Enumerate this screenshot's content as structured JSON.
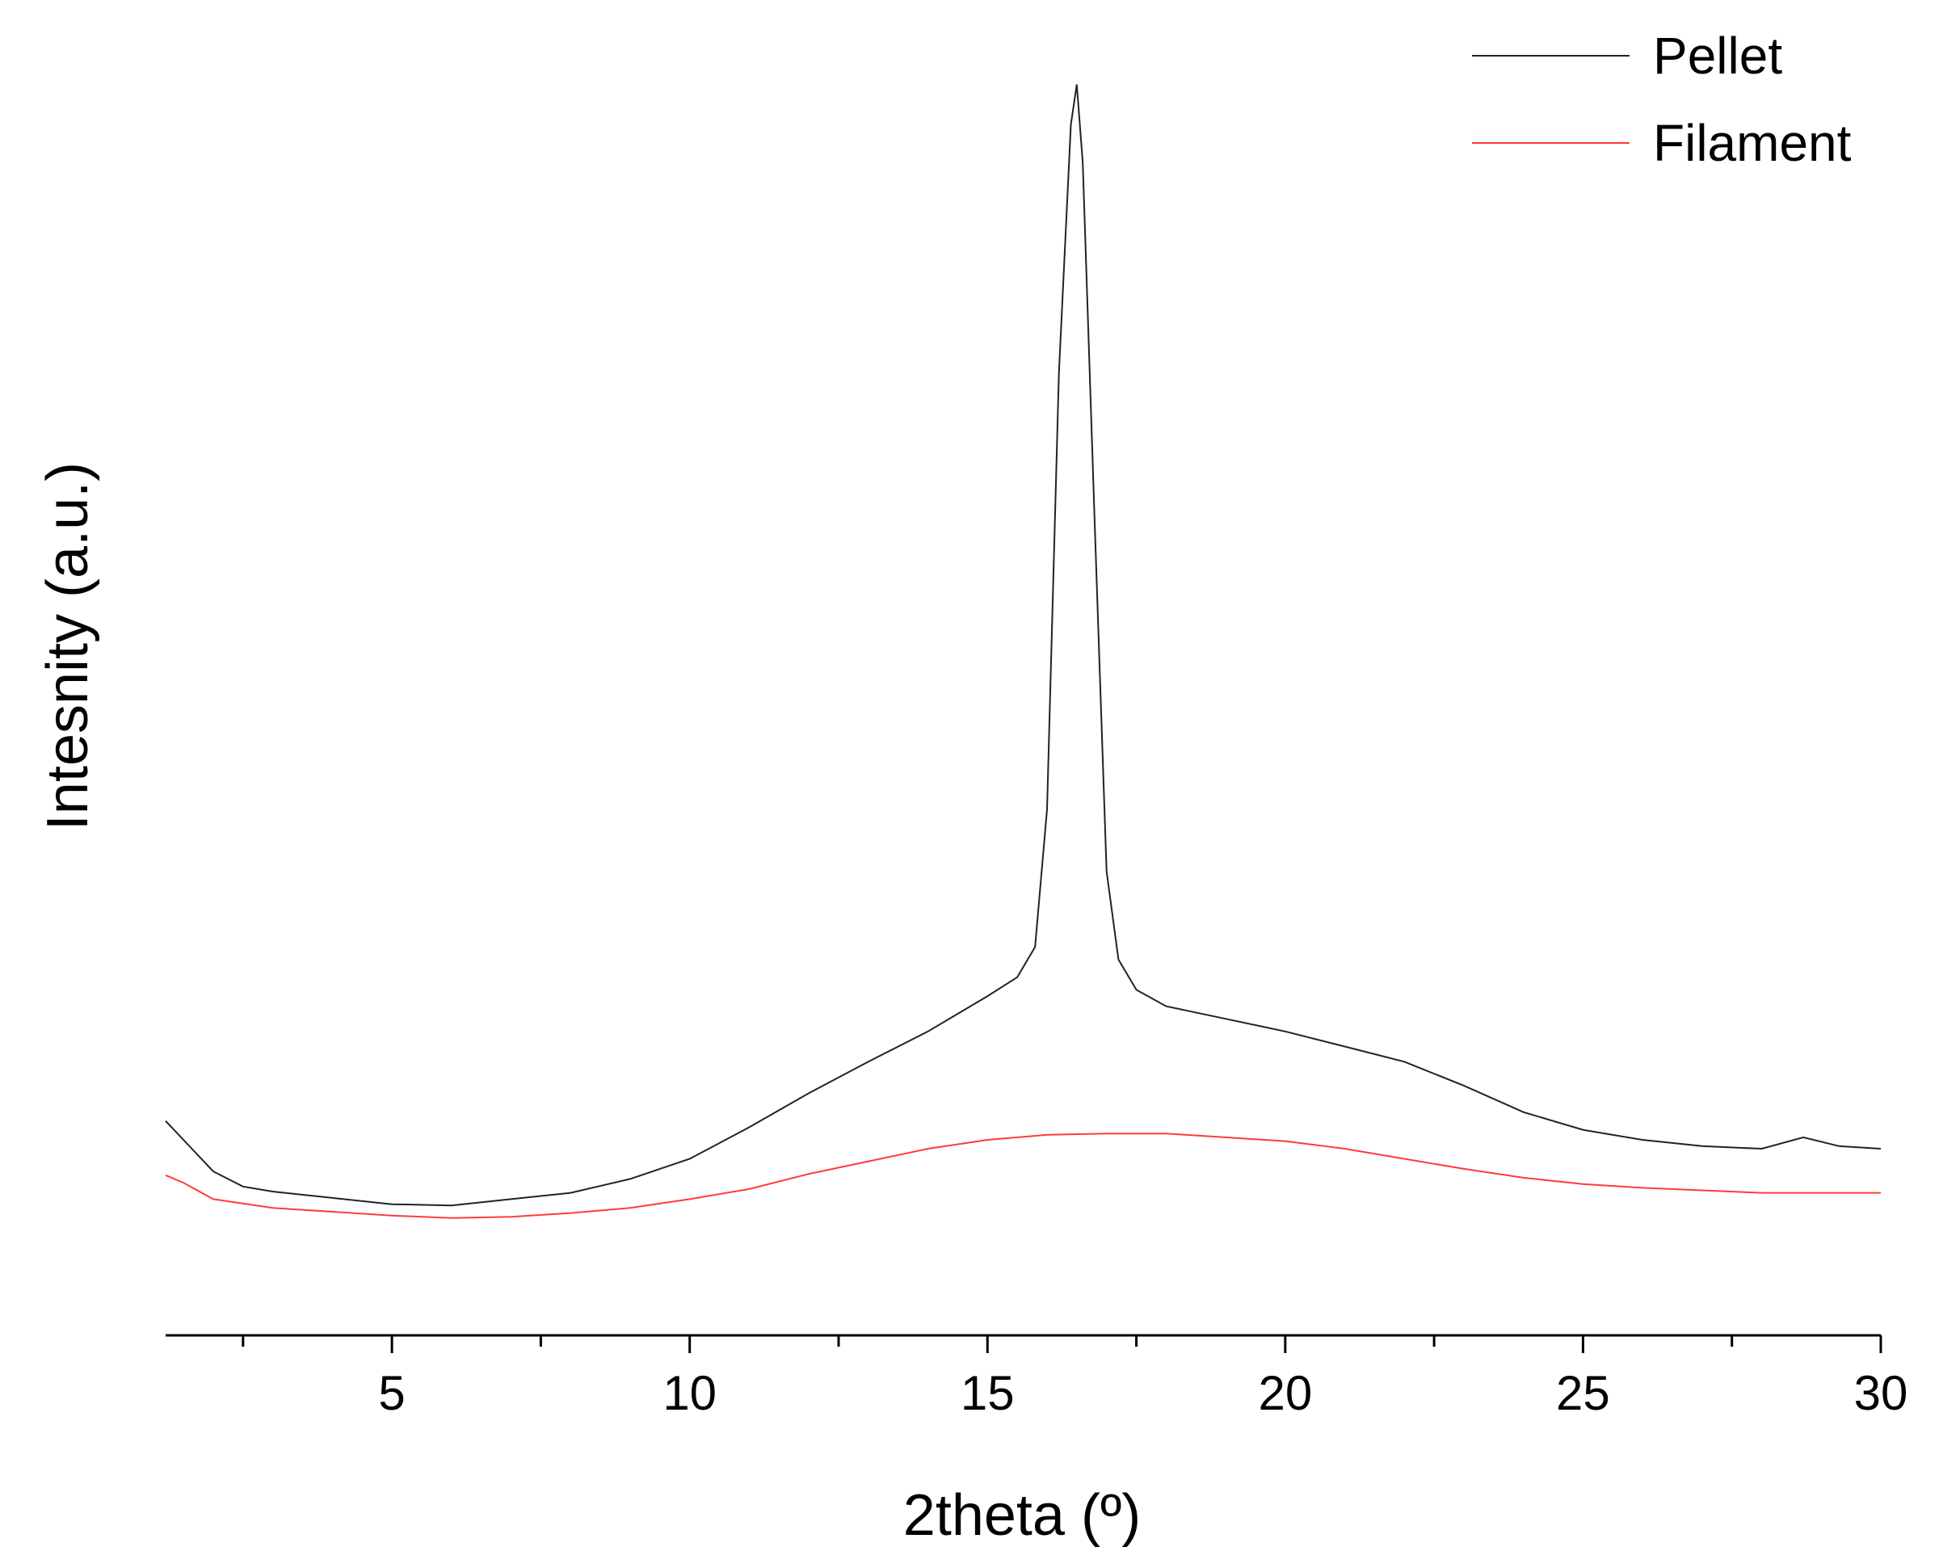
{
  "chart_data": {
    "type": "line",
    "x_label": "2theta (º)",
    "y_label": "Intesnity (a.u.)",
    "xlim": [
      1.2,
      30
    ],
    "ylim": [
      0,
      100
    ],
    "xticks": [
      5,
      10,
      15,
      20,
      25,
      30
    ],
    "xminorticks": [
      2.5,
      7.5,
      12.5,
      17.5,
      22.5,
      27.5
    ],
    "legend": "top-right",
    "series": [
      {
        "name": "Pellet",
        "color": "#222222",
        "x": [
          1.2,
          1.5,
          2,
          2.5,
          3,
          4,
          5,
          6,
          7,
          8,
          9,
          10,
          11,
          12,
          13,
          14,
          15,
          15.5,
          15.8,
          16.0,
          16.2,
          16.4,
          16.5,
          16.6,
          16.8,
          17.0,
          17.2,
          17.5,
          18,
          19,
          20,
          21,
          22,
          23,
          24,
          25,
          26,
          27,
          28,
          28.7,
          29.3,
          30
        ],
        "values": [
          17.0,
          15.5,
          13.0,
          11.8,
          11.4,
          10.9,
          10.4,
          10.3,
          10.8,
          11.3,
          12.4,
          14.0,
          16.5,
          19.2,
          21.7,
          24.1,
          26.9,
          28.4,
          30.8,
          41.7,
          76.3,
          96,
          99.2,
          93,
          64.4,
          36.8,
          29.8,
          27.4,
          26.1,
          25.1,
          24.1,
          22.9,
          21.7,
          19.8,
          17.7,
          16.3,
          15.5,
          15.0,
          14.8,
          15.7,
          15.0,
          14.8
        ]
      },
      {
        "name": "Filament",
        "color": "#ff3b3b",
        "x": [
          1.2,
          1.5,
          2,
          3,
          4,
          5,
          6,
          7,
          8,
          9,
          10,
          11,
          12,
          13,
          14,
          15,
          16,
          17,
          18,
          19,
          20,
          21,
          22,
          23,
          24,
          25,
          26,
          27,
          28,
          29,
          30
        ],
        "values": [
          12.7,
          12.1,
          10.8,
          10.1,
          9.8,
          9.5,
          9.3,
          9.4,
          9.7,
          10.1,
          10.8,
          11.6,
          12.8,
          13.8,
          14.8,
          15.5,
          15.9,
          16.0,
          16.0,
          15.7,
          15.4,
          14.8,
          14.0,
          13.2,
          12.5,
          12.0,
          11.7,
          11.5,
          11.3,
          11.3,
          11.3
        ]
      }
    ]
  }
}
